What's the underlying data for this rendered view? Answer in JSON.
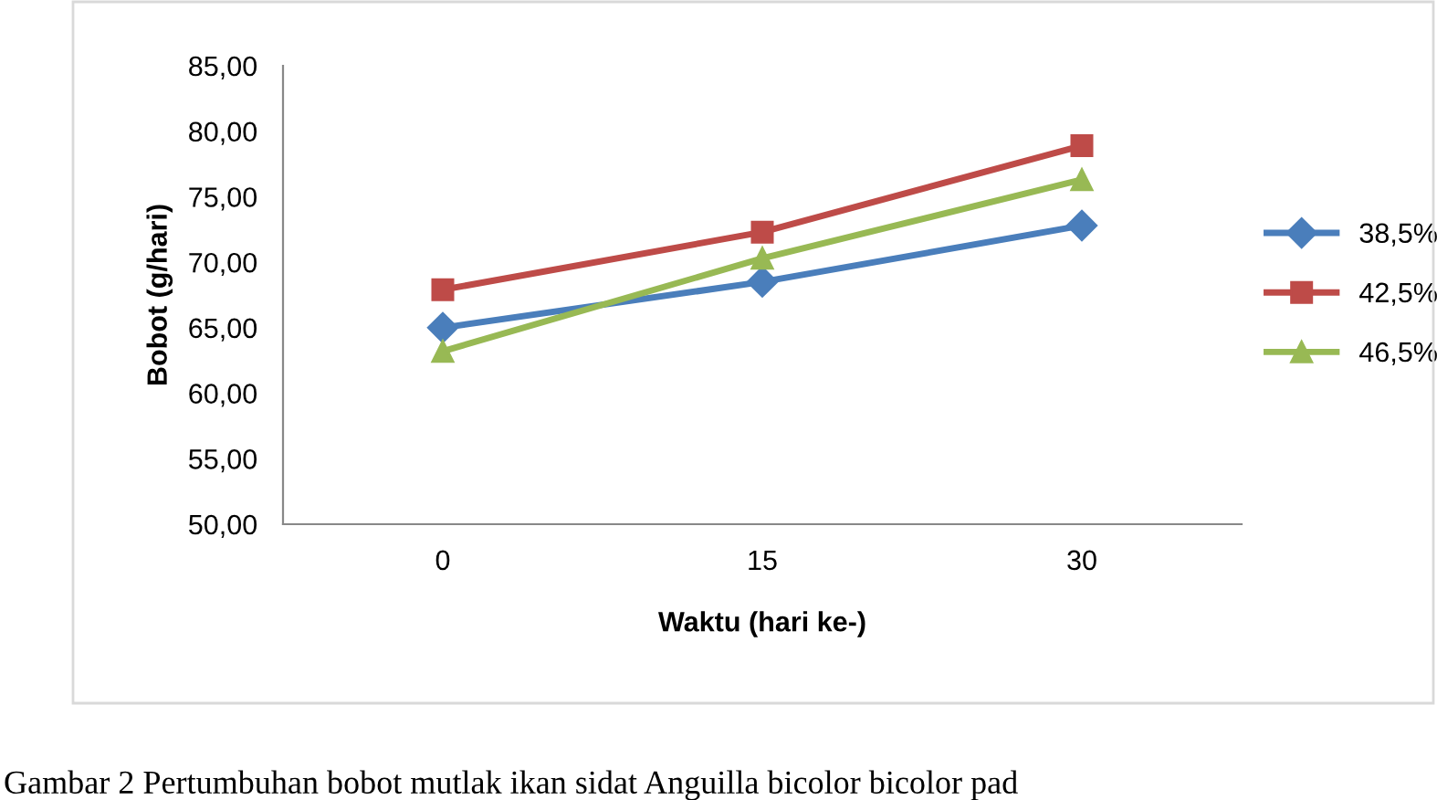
{
  "chart_data": {
    "type": "line",
    "xlabel": "Waktu (hari ke-)",
    "ylabel": "Bobot (g/hari)",
    "categories": [
      "0",
      "15",
      "30"
    ],
    "series": [
      {
        "name": "38,5%",
        "color": "#4a7ebb",
        "marker": "diamond",
        "values": [
          65.0,
          68.5,
          72.8
        ]
      },
      {
        "name": "42,5%",
        "color": "#be4b48",
        "marker": "square",
        "values": [
          67.9,
          72.3,
          78.9
        ]
      },
      {
        "name": "46,5%",
        "color": "#98b954",
        "marker": "triangle",
        "values": [
          63.2,
          70.3,
          76.3
        ]
      }
    ],
    "ylim": [
      50,
      85
    ],
    "yticks": [
      {
        "value": 50,
        "label": "50,00"
      },
      {
        "value": 55,
        "label": "55,00"
      },
      {
        "value": 60,
        "label": "60,00"
      },
      {
        "value": 65,
        "label": "65,00"
      },
      {
        "value": 70,
        "label": "70,00"
      },
      {
        "value": 75,
        "label": "75,00"
      },
      {
        "value": 80,
        "label": "80,00"
      },
      {
        "value": 85,
        "label": "85,00"
      }
    ],
    "grid": false,
    "legend": "right",
    "line_style": "solid",
    "annotations": [
      "Gambar 2 Pertumbuhan bobot mutlak ikan sidat Anguilla bicolor bicolor pad"
    ]
  }
}
